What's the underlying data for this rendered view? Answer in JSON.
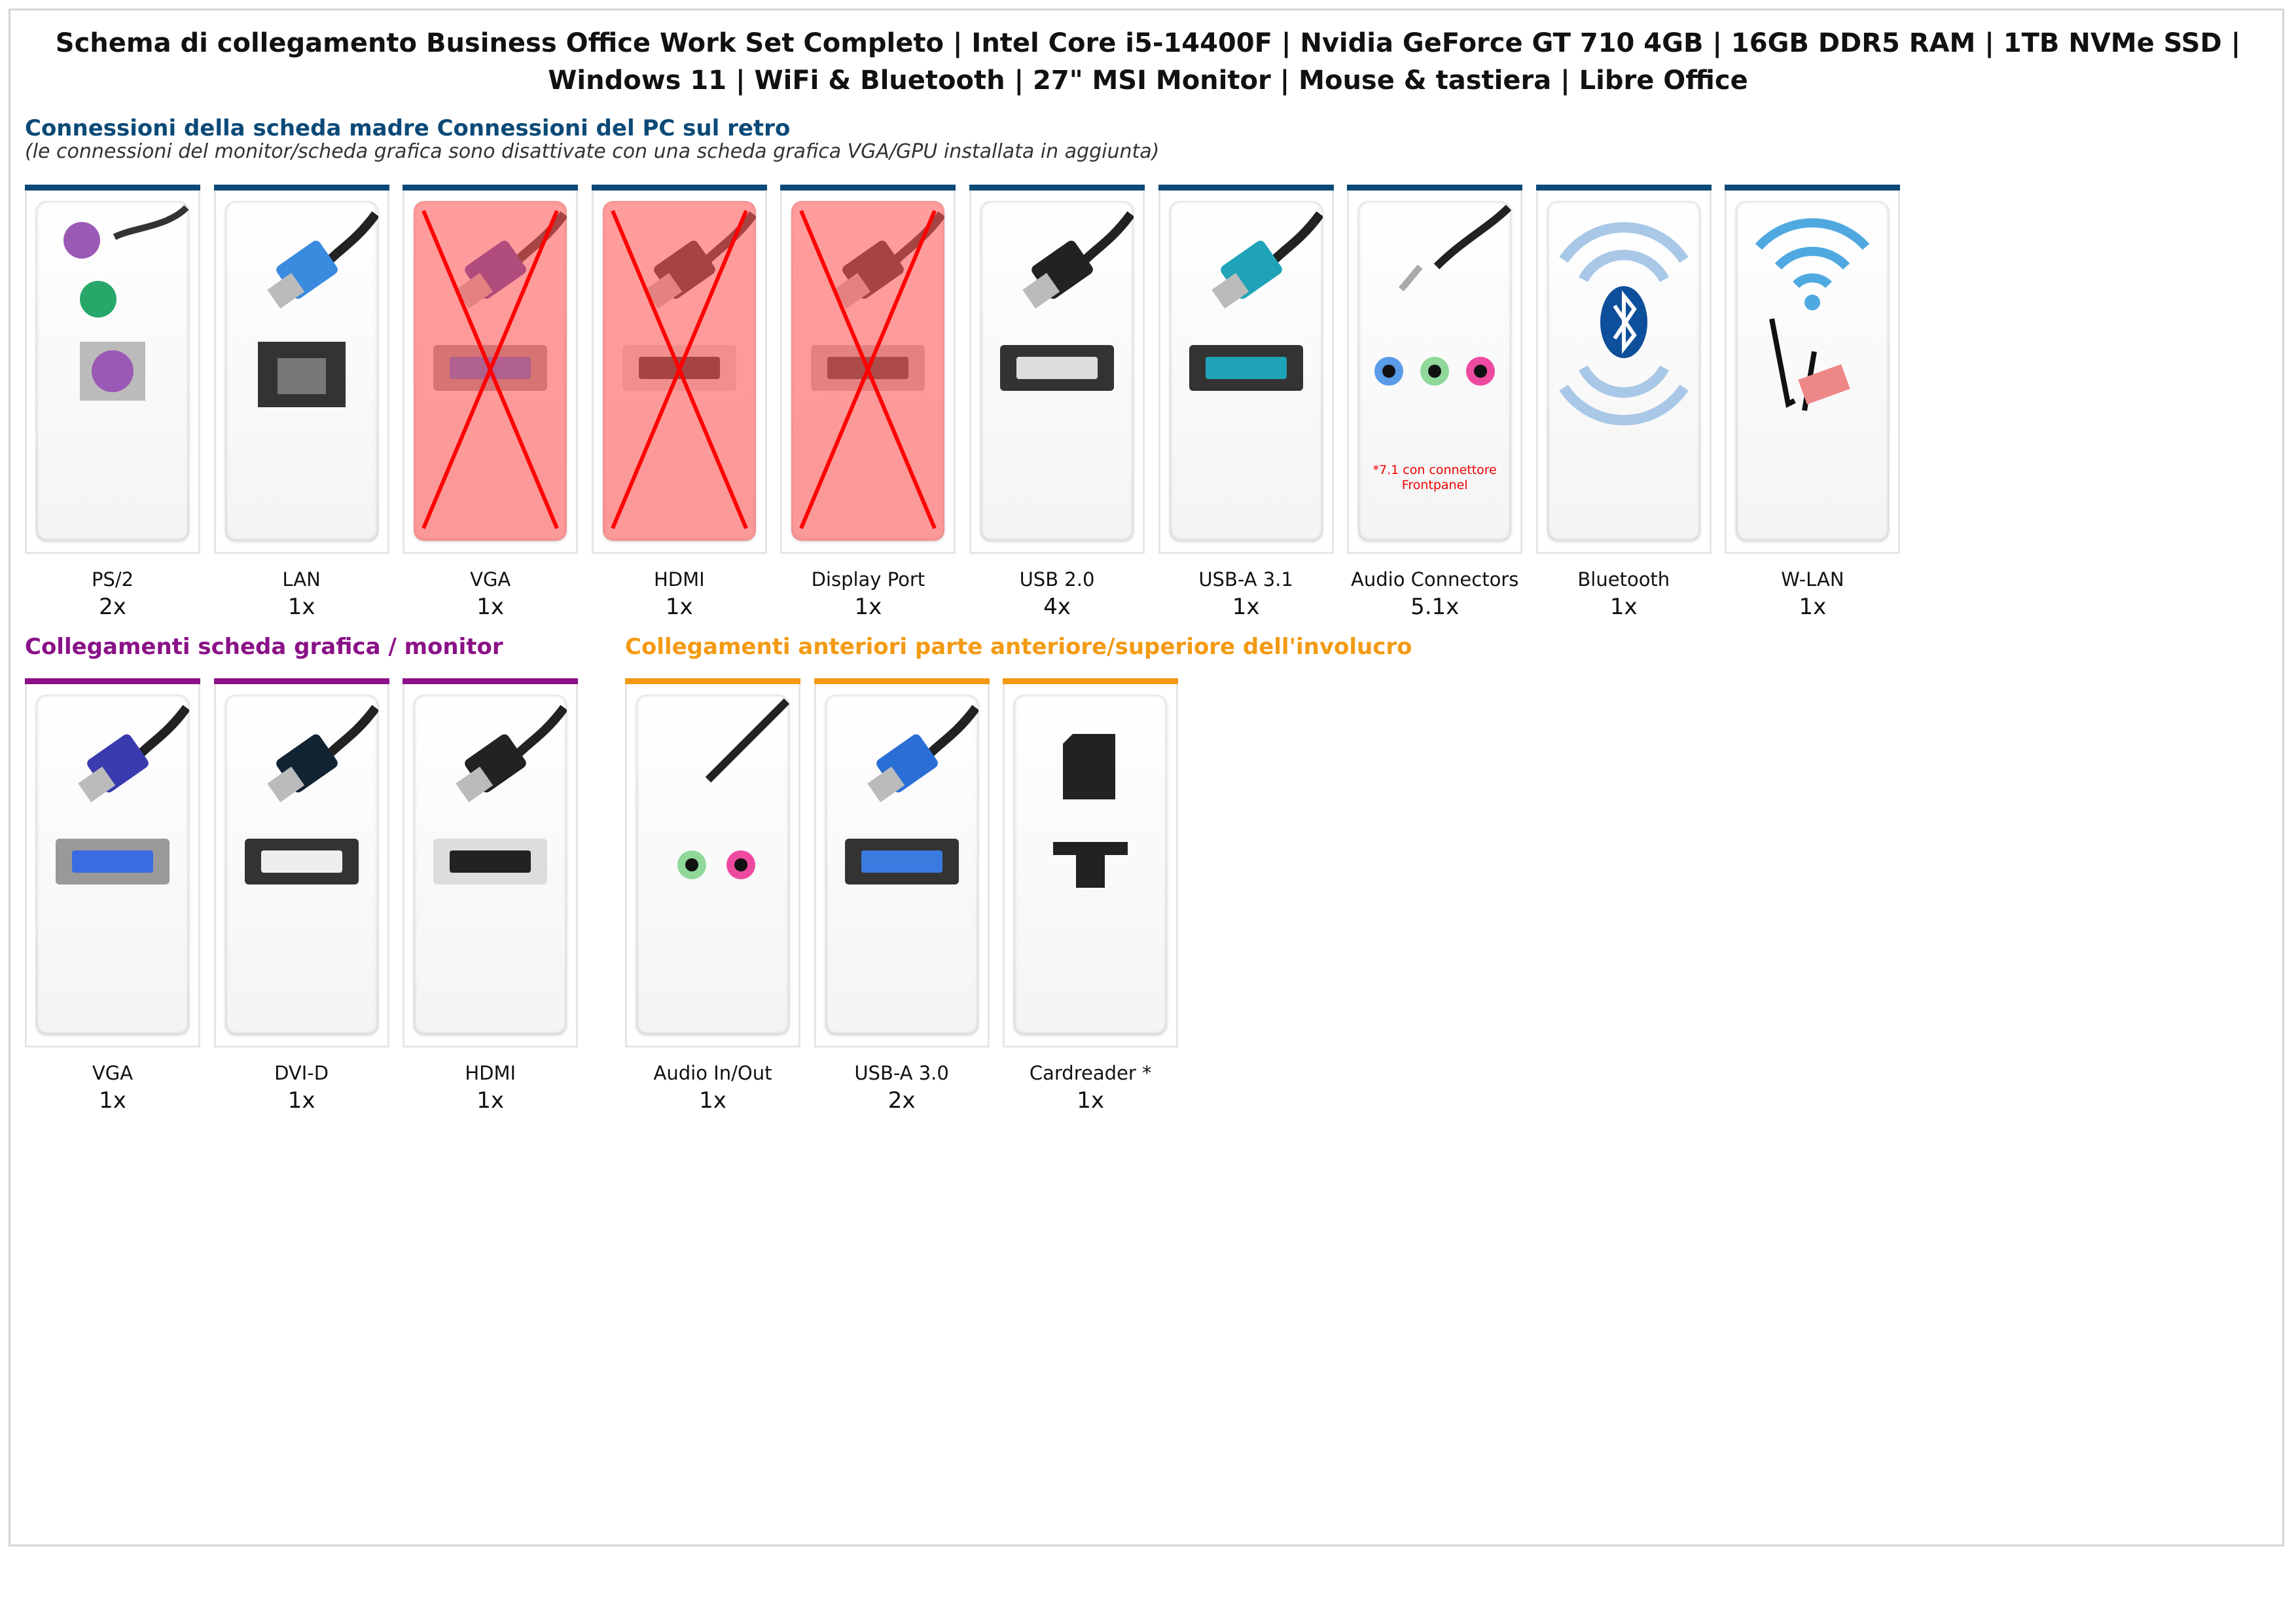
{
  "title": "Schema di collegamento Business Office Work Set Completo | Intel Core i5-14400F | Nvidia GeForce GT 710 4GB | 16GB DDR5 RAM | 1TB NVMe SSD | Windows 11 | WiFi & Bluetooth | 27\" MSI Monitor | Mouse & tastiera | Libre Office",
  "colors": {
    "rear": "#0b4a78",
    "gpu": "#8a1187",
    "front": "#f39a12",
    "disabled": "#ff6464"
  },
  "rear": {
    "heading": "Connessioni della scheda madre Connessioni del PC sul retro",
    "subtitle": "(le connessioni del monitor/scheda grafica sono disattivate con una scheda grafica VGA/GPU installata in aggiunta)",
    "items": [
      {
        "label": "PS/2",
        "count": "2x",
        "icon": "ps2-icon"
      },
      {
        "label": "LAN",
        "count": "1x",
        "icon": "lan-icon"
      },
      {
        "label": "VGA",
        "count": "1x",
        "icon": "vga-icon",
        "disabled": true
      },
      {
        "label": "HDMI",
        "count": "1x",
        "icon": "hdmi-icon",
        "disabled": true
      },
      {
        "label": "Display Port",
        "count": "1x",
        "icon": "displayport-icon",
        "disabled": true
      },
      {
        "label": "USB 2.0",
        "count": "4x",
        "icon": "usb2-icon"
      },
      {
        "label": "USB-A 3.1",
        "count": "1x",
        "icon": "usb31-icon"
      },
      {
        "label": "Audio Connectors",
        "count": "5.1x",
        "icon": "audio-icon",
        "note": "*7.1 con connettore Frontpanel"
      },
      {
        "label": "Bluetooth",
        "count": "1x",
        "icon": "bluetooth-icon"
      },
      {
        "label": "W-LAN",
        "count": "1x",
        "icon": "wifi-icon"
      }
    ]
  },
  "gpu": {
    "heading": "Collegamenti scheda grafica / monitor",
    "items": [
      {
        "label": "VGA",
        "count": "1x",
        "icon": "vga-icon"
      },
      {
        "label": "DVI-D",
        "count": "1x",
        "icon": "dvi-icon"
      },
      {
        "label": "HDMI",
        "count": "1x",
        "icon": "hdmi-icon"
      }
    ]
  },
  "front": {
    "heading": "Collegamenti anteriori parte anteriore/superiore dell'involucro",
    "items": [
      {
        "label": "Audio In/Out",
        "count": "1x",
        "icon": "audio-front-icon"
      },
      {
        "label": "USB-A 3.0",
        "count": "2x",
        "icon": "usb3-icon"
      },
      {
        "label": "Cardreader *",
        "count": "1x",
        "icon": "cardreader-icon"
      }
    ]
  }
}
